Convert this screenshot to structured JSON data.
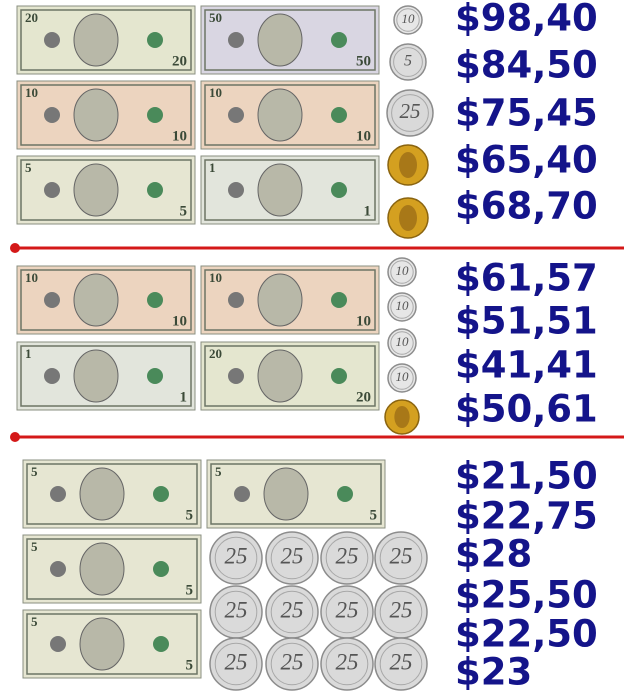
{
  "sections": [
    {
      "bills": [
        "20",
        "50",
        "10",
        "10",
        "5",
        "1"
      ],
      "coins": [
        "10",
        "5",
        "25"
      ],
      "prices": [
        "$98,40",
        "$84,50",
        "$75,45",
        "$65,40",
        "$68,70"
      ]
    },
    {
      "bills": [
        "10",
        "10",
        "1",
        "20"
      ],
      "coins": [
        "10",
        "10",
        "10",
        "10"
      ],
      "prices": [
        "$61,57",
        "$51,51",
        "$41,41",
        "$50,61"
      ]
    },
    {
      "bills": [
        "5",
        "5",
        "5",
        "5"
      ],
      "coins": [
        "25",
        "25",
        "25",
        "25",
        "25",
        "25",
        "25",
        "25",
        "25",
        "25",
        "25",
        "25"
      ],
      "prices": [
        "$21,50",
        "$22,75",
        "$28",
        "$25,50",
        "$22,50",
        "$23"
      ]
    }
  ]
}
